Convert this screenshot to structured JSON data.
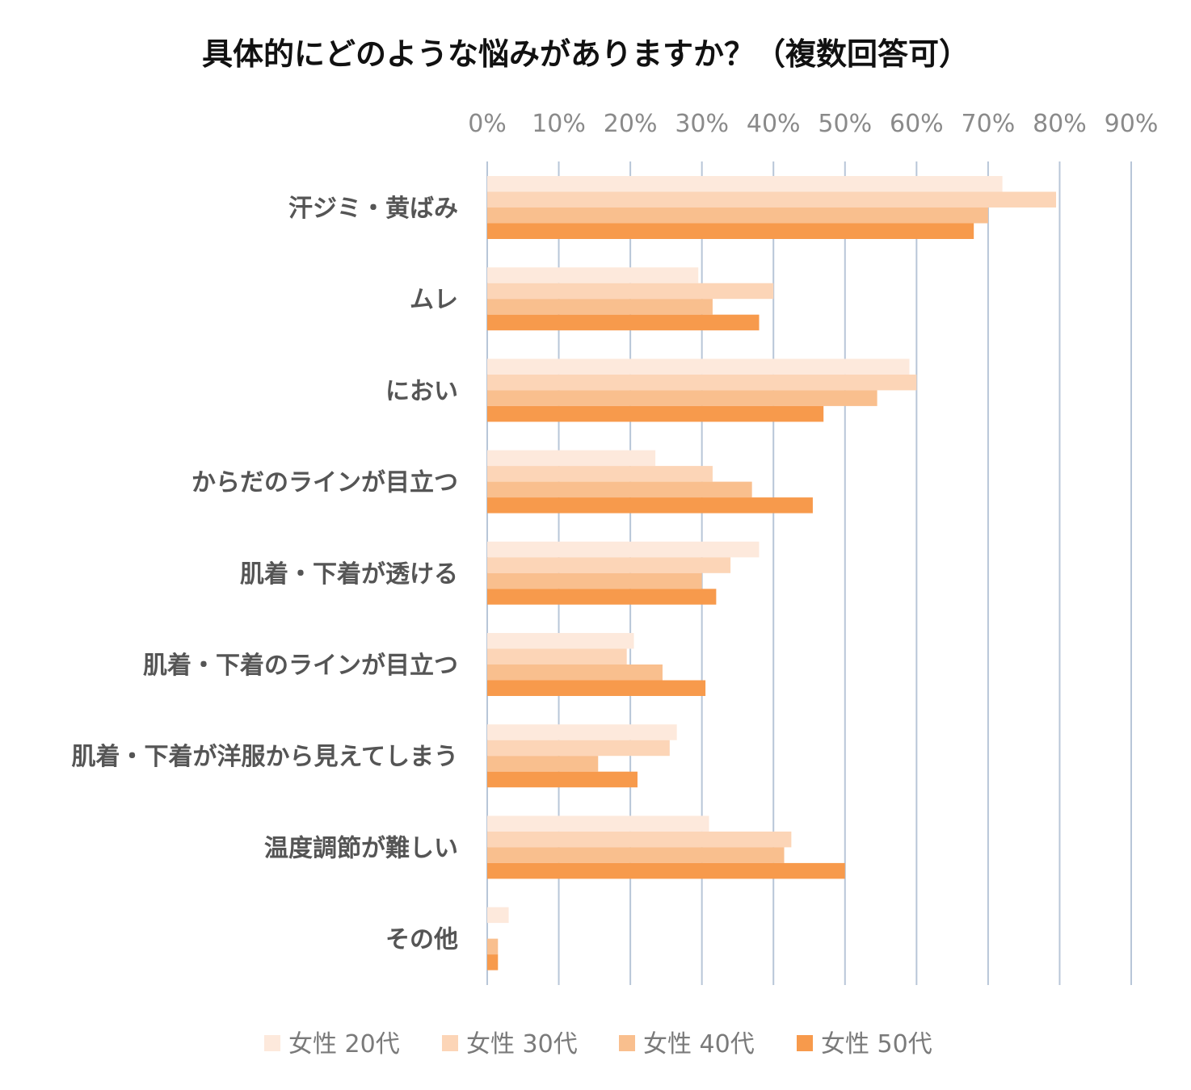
{
  "chart_data": {
    "type": "bar",
    "orientation": "horizontal",
    "title": "具体的にどのような悩みがありますか？（複数回答可）",
    "xlabel": "",
    "ylabel": "",
    "xlim": [
      0,
      90
    ],
    "ticks": [
      0,
      10,
      20,
      30,
      40,
      50,
      60,
      70,
      80,
      90
    ],
    "tick_labels": [
      "0%",
      "10%",
      "20%",
      "30%",
      "40%",
      "50%",
      "60%",
      "70%",
      "80%",
      "90%"
    ],
    "grid": true,
    "legend_position": "bottom",
    "categories": [
      "汗ジミ・黄ばみ",
      "ムレ",
      "におい",
      "からだのラインが目立つ",
      "肌着・下着が透ける",
      "肌着・下着のラインが目立つ",
      "肌着・下着が洋服から見えてしまう",
      "温度調節が難しい",
      "その他"
    ],
    "series": [
      {
        "name": "女性 20代",
        "color": "#fde9dc",
        "values": [
          72,
          29.5,
          59,
          23.5,
          38,
          20.5,
          26.5,
          31,
          3
        ]
      },
      {
        "name": "女性 30代",
        "color": "#fcd5b7",
        "values": [
          79.5,
          40,
          60,
          31.5,
          34,
          19.5,
          25.5,
          42.5,
          0
        ]
      },
      {
        "name": "女性 40代",
        "color": "#f9bf8e",
        "values": [
          70,
          31.5,
          54.5,
          37,
          30,
          24.5,
          15.5,
          41.5,
          1.5
        ]
      },
      {
        "name": "女性 50代",
        "color": "#f79a4c",
        "values": [
          68,
          38,
          47,
          45.5,
          32,
          30.5,
          21,
          50,
          1.5
        ]
      }
    ]
  }
}
